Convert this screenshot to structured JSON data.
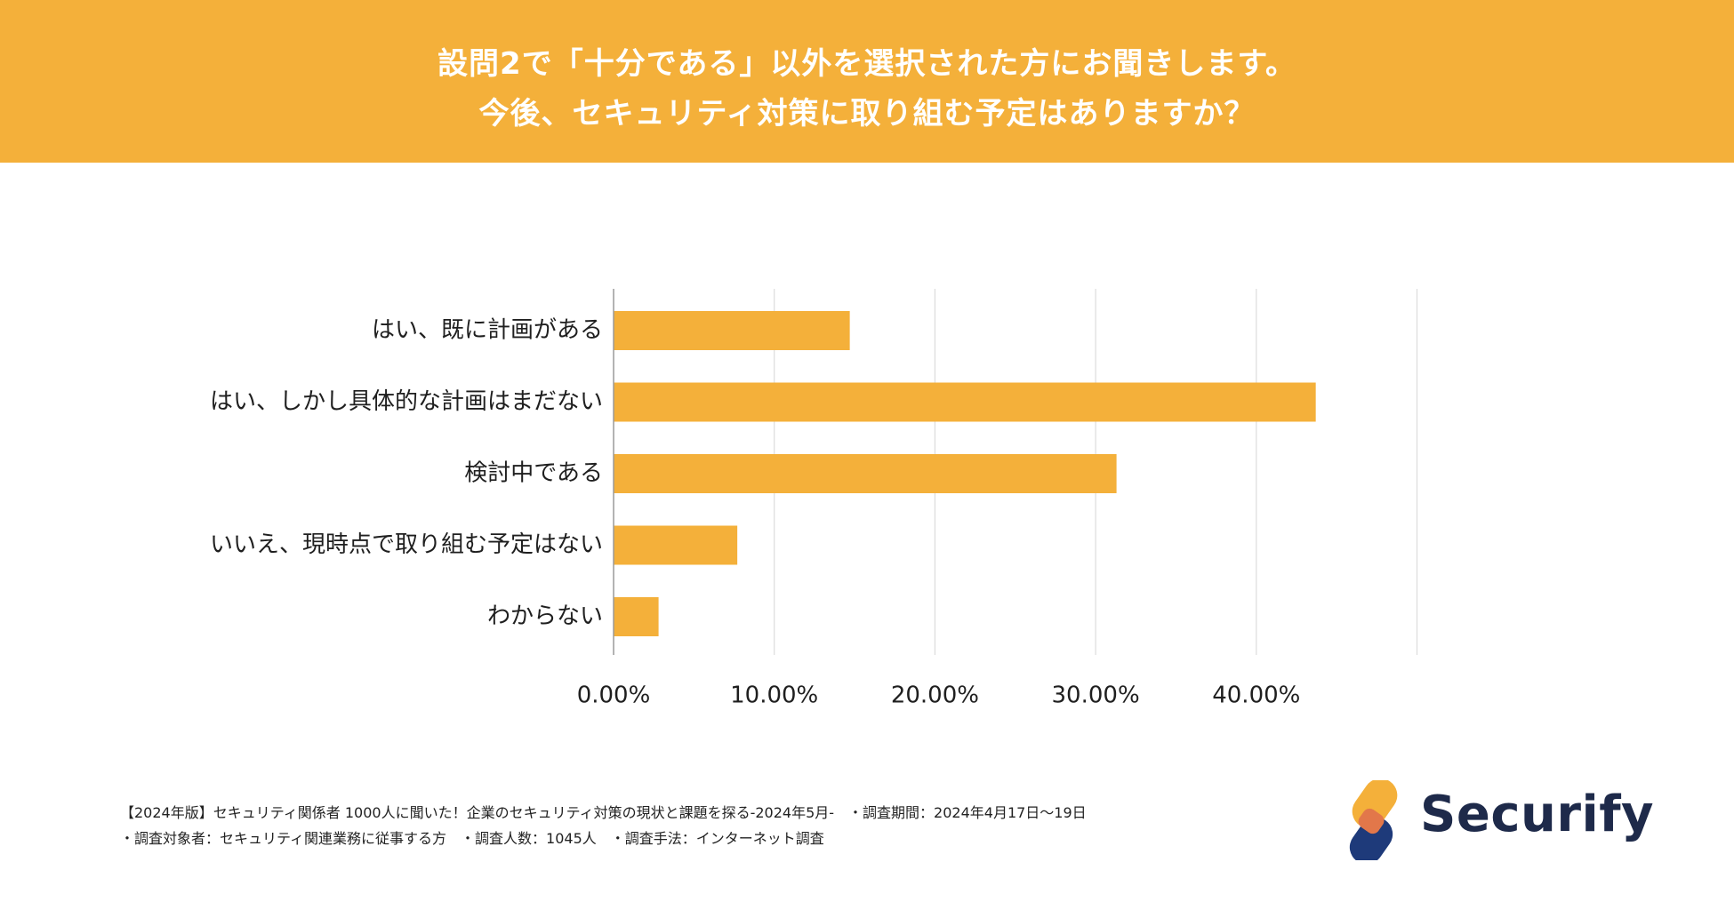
{
  "header": {
    "title_line1": "設問2で「十分である」以外を選択された方にお聞きします。",
    "title_line2": "今後、セキュリティ対策に取り組む予定はありますか？"
  },
  "chart_data": {
    "type": "bar",
    "orientation": "horizontal",
    "categories": [
      "はい、既に計画がある",
      "はい、しかし具体的な計画はまだない",
      "検討中である",
      "いいえ、現時点で取り組む予定はない",
      "わからない"
    ],
    "values": [
      14.7,
      43.7,
      31.3,
      7.7,
      2.8
    ],
    "x_ticks": [
      "0.00%",
      "10.00%",
      "20.00%",
      "30.00%",
      "40.00%"
    ],
    "xlim": [
      0,
      50
    ],
    "grid": true,
    "bar_color": "#f4b03a"
  },
  "footer": {
    "line1": "【2024年版】セキュリティ関係者 1000人に聞いた！企業のセキュリティ対策の現状と課題を探る-2024年5月-　・調査期間：2024年4月17日〜19日",
    "line2": "・調査対象者：セキュリティ関連業務に従事する方　・調査人数：1045人　・調査手法：インターネット調査"
  },
  "logo": {
    "text": "Securify",
    "color_primary": "#f4b03a",
    "color_secondary": "#1e3a7a"
  }
}
